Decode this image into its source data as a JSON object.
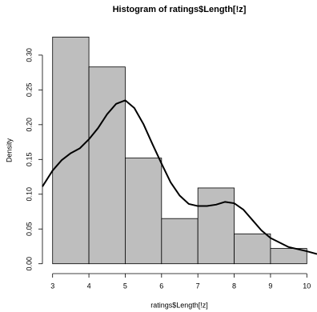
{
  "chart_data": {
    "type": "histogram",
    "title": "Histogram of ratings$Length[!z]",
    "x_label": "ratings$Length[!z]",
    "y_label": "Density",
    "bins": [
      3,
      4,
      5,
      6,
      7,
      8,
      9,
      10
    ],
    "values": [
      0.326,
      0.283,
      0.152,
      0.065,
      0.109,
      0.043,
      0.022
    ],
    "color": "#bebebe",
    "xlim": [
      2.72,
      10.28
    ],
    "ylim": [
      -0.013,
      0.339
    ],
    "xticks": [
      3,
      4,
      5,
      6,
      7,
      8,
      9,
      10
    ],
    "yticks": [
      {
        "value": 0,
        "label": "0.00"
      },
      {
        "value": 0.05,
        "label": "0.05"
      },
      {
        "value": 0.1,
        "label": "0.10"
      },
      {
        "value": 0.15,
        "label": "0.15"
      },
      {
        "value": 0.2,
        "label": "0.20"
      },
      {
        "value": 0.25,
        "label": "0.25"
      },
      {
        "value": 0.3,
        "label": "0.30"
      }
    ],
    "overlay": {
      "type": "line",
      "color": "#000000",
      "x": [
        2.72,
        3.0,
        3.25,
        3.5,
        3.75,
        4.0,
        4.25,
        4.5,
        4.75,
        5.0,
        5.25,
        5.5,
        5.75,
        6.0,
        6.25,
        6.5,
        6.75,
        7.0,
        7.25,
        7.5,
        7.75,
        8.0,
        8.25,
        8.5,
        8.75,
        9.0,
        9.5,
        10.0,
        10.28
      ],
      "values": [
        0.111,
        0.134,
        0.149,
        0.159,
        0.166,
        0.179,
        0.195,
        0.215,
        0.23,
        0.235,
        0.224,
        0.201,
        0.172,
        0.144,
        0.117,
        0.098,
        0.086,
        0.083,
        0.083,
        0.085,
        0.089,
        0.087,
        0.078,
        0.063,
        0.048,
        0.037,
        0.024,
        0.018,
        0.014
      ]
    }
  }
}
